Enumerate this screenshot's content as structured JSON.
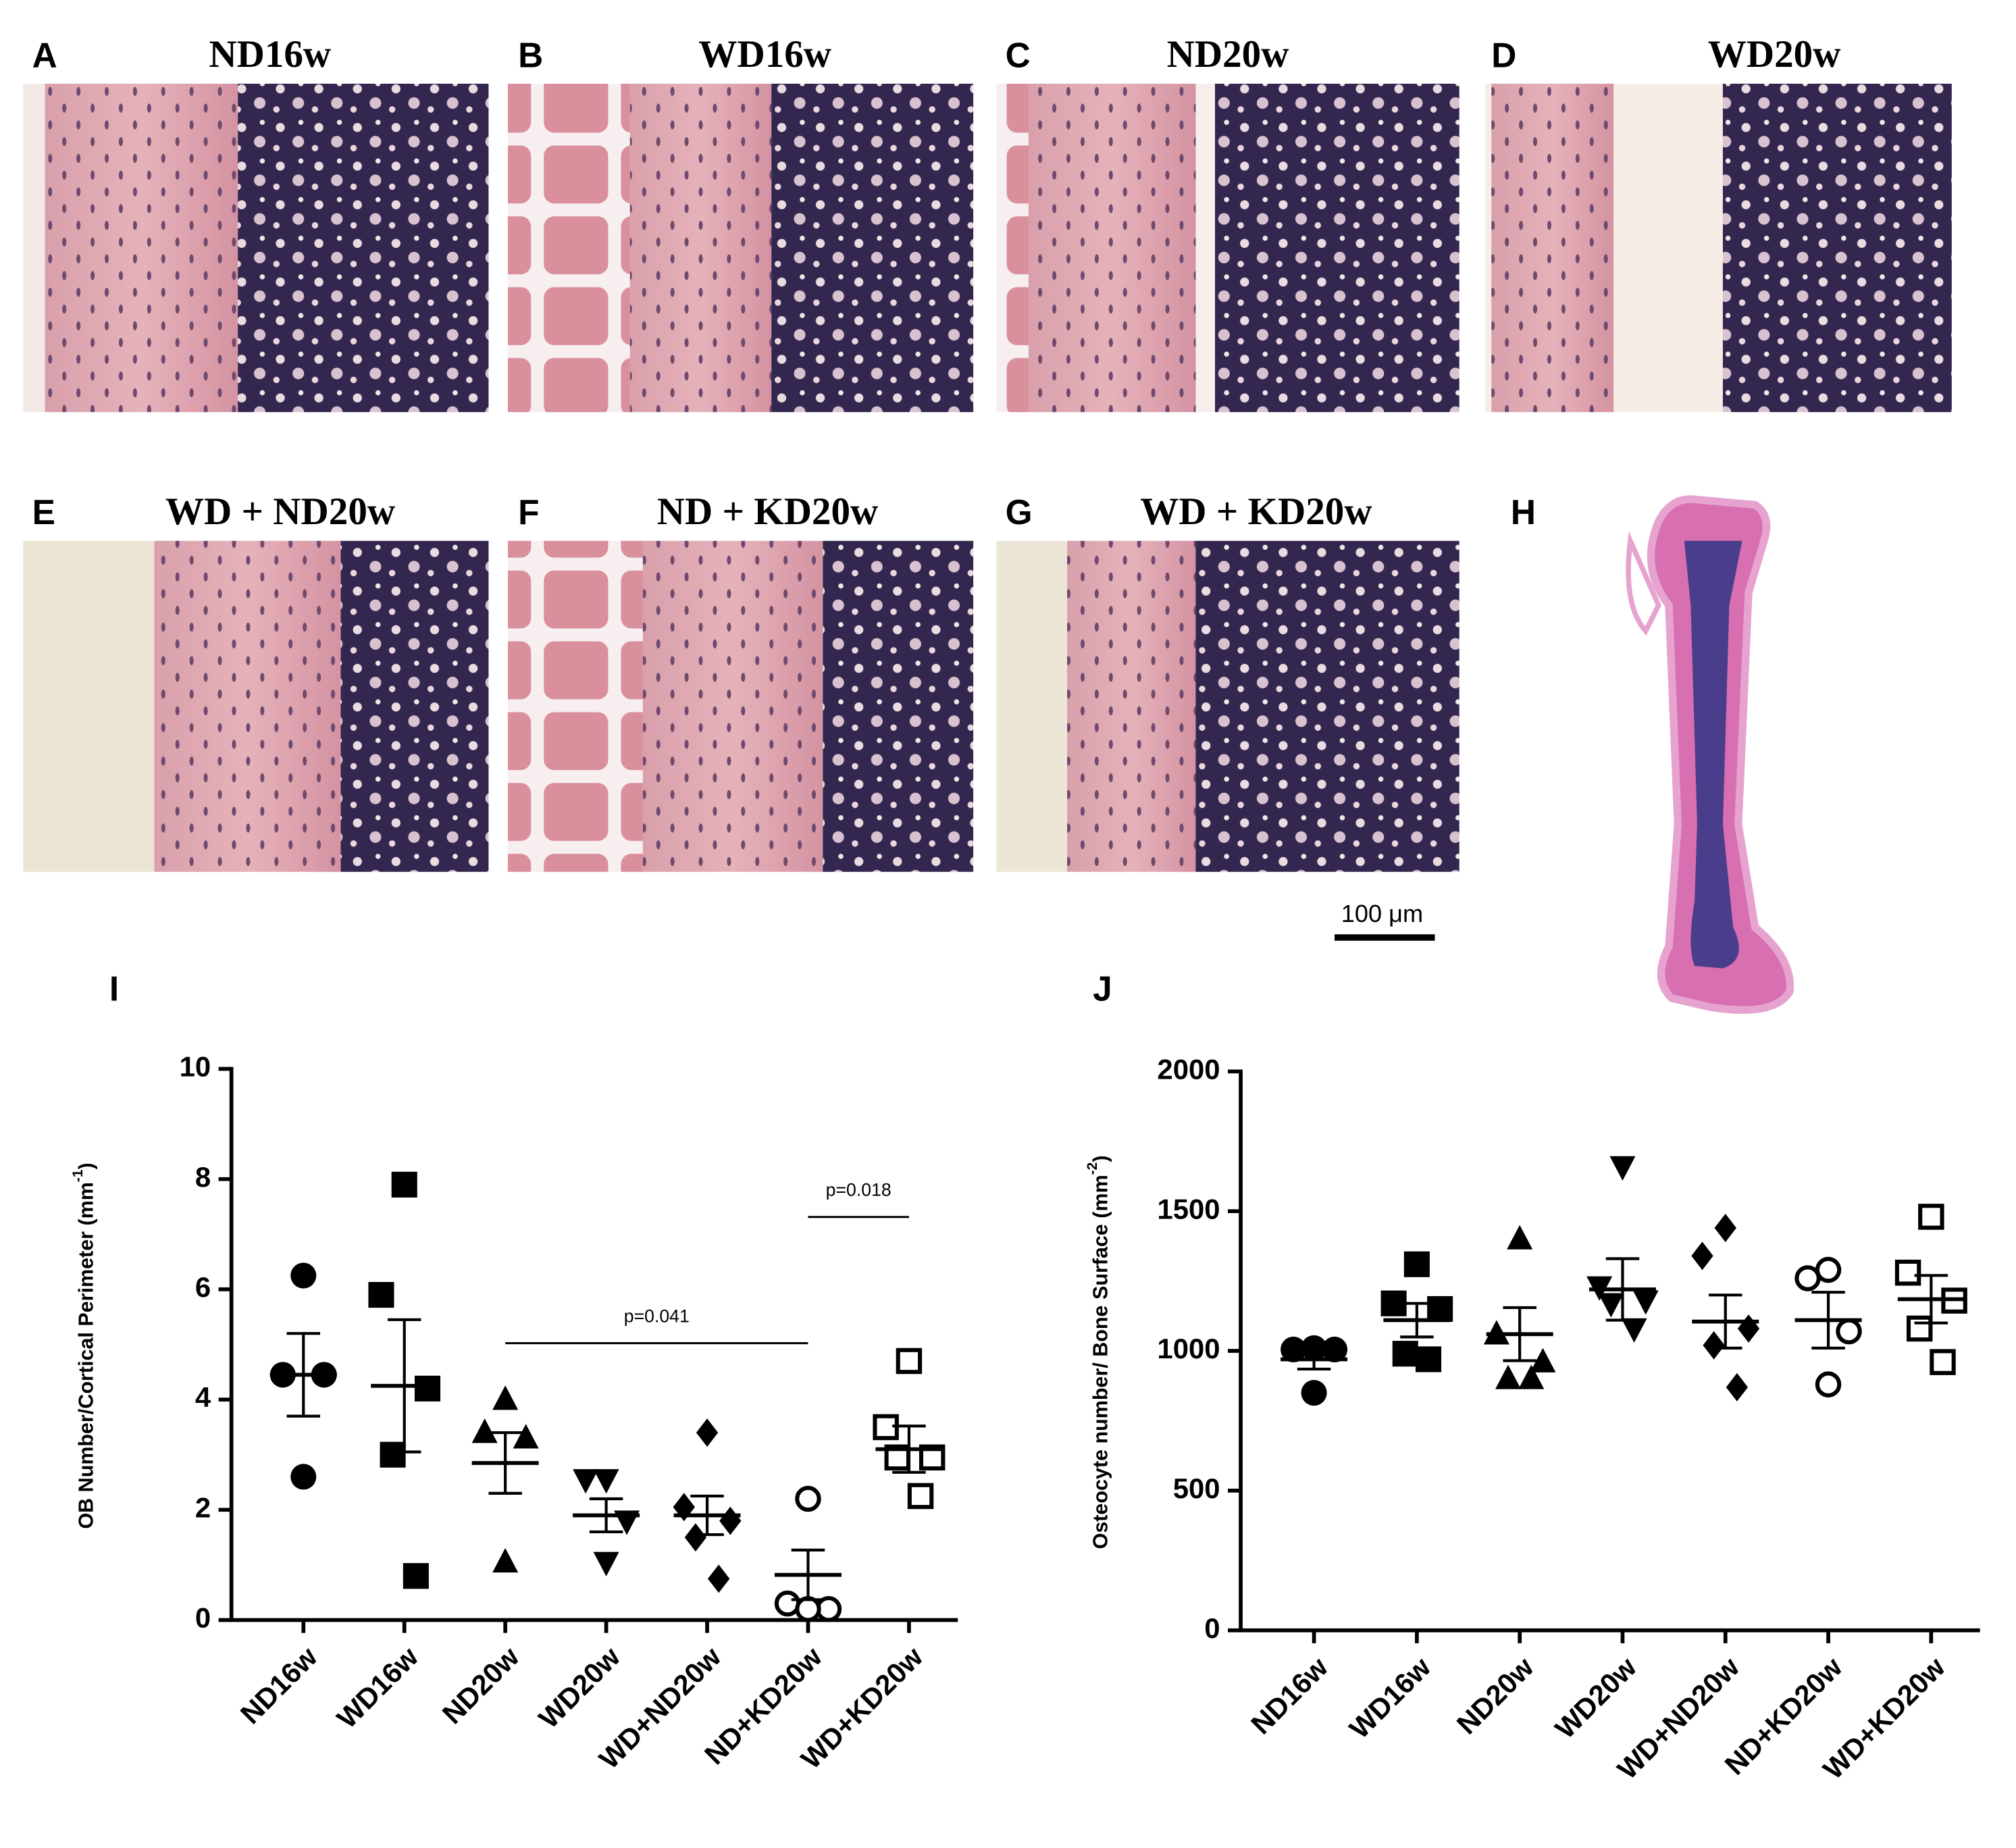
{
  "panels": [
    {
      "letter": "A",
      "title": "ND16w"
    },
    {
      "letter": "B",
      "title": "WD16w"
    },
    {
      "letter": "C",
      "title": "ND20w"
    },
    {
      "letter": "D",
      "title": "WD20w"
    },
    {
      "letter": "E",
      "title": "WD + ND20w"
    },
    {
      "letter": "F",
      "title": "ND + KD20w"
    },
    {
      "letter": "G",
      "title": "WD + KD20w"
    },
    {
      "letter": "H"
    }
  ],
  "scale_bar": "100 μm",
  "chart_data": [
    {
      "type": "scatter",
      "panel_label": "I",
      "ylabel": {
        "text": "OB Number/Cortical Perimeter (mm",
        "sup": "-1",
        "tail": ")"
      },
      "categories": [
        "ND16w",
        "WD16w",
        "ND20w",
        "WD20w",
        "WD+ND20w",
        "ND+KD20w",
        "WD+KD20w"
      ],
      "ylim": [
        0,
        10
      ],
      "yticks": [
        0,
        2,
        4,
        6,
        8,
        10
      ],
      "groups": [
        {
          "marker": "circle",
          "filled": true,
          "values": [
            6.25,
            4.45,
            4.45,
            2.6
          ],
          "mean": 4.45,
          "sem": 0.75
        },
        {
          "marker": "square",
          "filled": true,
          "values": [
            7.9,
            5.9,
            4.2,
            3.0,
            0.8
          ],
          "mean": 4.25,
          "sem": 1.2
        },
        {
          "marker": "triangle",
          "filled": true,
          "values": [
            4.0,
            3.4,
            3.3,
            1.05
          ],
          "mean": 2.85,
          "sem": 0.55
        },
        {
          "marker": "triangle-down",
          "filled": true,
          "values": [
            2.55,
            2.55,
            1.8,
            1.05
          ],
          "mean": 1.9,
          "sem": 0.3
        },
        {
          "marker": "diamond",
          "filled": true,
          "values": [
            3.4,
            2.05,
            1.8,
            1.5,
            0.75
          ],
          "mean": 1.9,
          "sem": 0.35
        },
        {
          "marker": "circle",
          "filled": false,
          "values": [
            2.2,
            0.3,
            0.2,
            0.2
          ],
          "mean": 0.82,
          "sem": 0.45
        },
        {
          "marker": "square",
          "filled": false,
          "values": [
            4.7,
            3.5,
            2.95,
            2.95,
            2.25
          ],
          "mean": 3.1,
          "sem": 0.42
        }
      ],
      "annotations": [
        "p=0.041",
        "p=0.018"
      ]
    },
    {
      "type": "scatter",
      "panel_label": "J",
      "ylabel": {
        "text": "Osteocyte number/ Bone Surface (mm",
        "sup": "-2",
        "tail": ")"
      },
      "categories": [
        "ND16w",
        "WD16w",
        "ND20w",
        "WD20w",
        "WD+ND20w",
        "ND+KD20w",
        "WD+KD20w"
      ],
      "ylim": [
        0,
        2000
      ],
      "yticks": [
        0,
        500,
        1000,
        1500,
        2000
      ],
      "groups": [
        {
          "marker": "circle",
          "filled": true,
          "values": [
            1010,
            1005,
            1005,
            850
          ],
          "mean": 970,
          "sem": 35
        },
        {
          "marker": "square",
          "filled": true,
          "values": [
            1310,
            1170,
            1150,
            990,
            970
          ],
          "mean": 1110,
          "sem": 60
        },
        {
          "marker": "triangle",
          "filled": true,
          "values": [
            1400,
            1060,
            960,
            900,
            900
          ],
          "mean": 1060,
          "sem": 95
        },
        {
          "marker": "triangle-down",
          "filled": true,
          "values": [
            1660,
            1230,
            1180,
            1170,
            1080
          ],
          "mean": 1220,
          "sem": 110
        },
        {
          "marker": "diamond",
          "filled": true,
          "values": [
            1440,
            1340,
            1080,
            1020,
            870
          ],
          "mean": 1105,
          "sem": 95
        },
        {
          "marker": "circle",
          "filled": false,
          "values": [
            1290,
            1260,
            1070,
            880
          ],
          "mean": 1110,
          "sem": 100
        },
        {
          "marker": "square",
          "filled": false,
          "values": [
            1480,
            1280,
            1180,
            1080,
            960
          ],
          "mean": 1185,
          "sem": 85
        }
      ]
    }
  ]
}
